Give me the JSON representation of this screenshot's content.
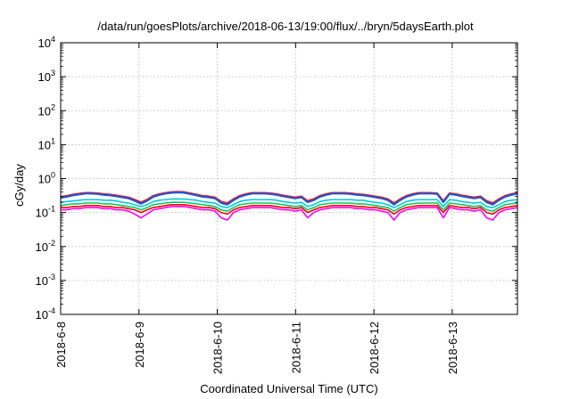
{
  "chart_data": {
    "type": "line",
    "title": "/data/run/goesPlots/archive/2018-06-13/19:00/flux/../bryn/5daysEarth.plot",
    "xlabel": "Coordinated Universal Time (UTC)",
    "ylabel": "cGy/day",
    "yscale": "log",
    "ylim": [
      0.0001,
      10000
    ],
    "y_ticks": [
      {
        "value": 0.0001,
        "base": "10",
        "exp": "-4"
      },
      {
        "value": 0.001,
        "base": "10",
        "exp": "-3"
      },
      {
        "value": 0.01,
        "base": "10",
        "exp": "-2"
      },
      {
        "value": 0.1,
        "base": "10",
        "exp": "-1"
      },
      {
        "value": 1,
        "base": "10",
        "exp": "0"
      },
      {
        "value": 10,
        "base": "10",
        "exp": "1"
      },
      {
        "value": 100,
        "base": "10",
        "exp": "2"
      },
      {
        "value": 1000,
        "base": "10",
        "exp": "3"
      },
      {
        "value": 10000,
        "base": "10",
        "exp": "4"
      }
    ],
    "xlim": [
      "2018-06-08 00:00",
      "2018-06-13 20:00"
    ],
    "x_ticks": [
      "2018-6-8",
      "2018-6-9",
      "2018-6-10",
      "2018-6-11",
      "2018-6-12",
      "2018-6-13"
    ],
    "x_tick_values": [
      "2018-06-08 00:00",
      "2018-06-09 00:00",
      "2018-06-10 00:00",
      "2018-06-11 00:00",
      "2018-06-12 00:00",
      "2018-06-13 00:00"
    ],
    "grid": true,
    "legend": "none",
    "series": [
      {
        "color": "#ff00ff",
        "values": [
          0.12,
          0.12,
          0.13,
          0.13,
          0.14,
          0.14,
          0.14,
          0.13,
          0.13,
          0.12,
          0.12,
          0.11,
          0.09,
          0.07,
          0.09,
          0.12,
          0.13,
          0.14,
          0.15,
          0.15,
          0.15,
          0.14,
          0.13,
          0.12,
          0.12,
          0.11,
          0.07,
          0.06,
          0.1,
          0.12,
          0.13,
          0.14,
          0.14,
          0.14,
          0.14,
          0.13,
          0.12,
          0.12,
          0.11,
          0.12,
          0.07,
          0.1,
          0.12,
          0.13,
          0.14,
          0.14,
          0.14,
          0.14,
          0.13,
          0.13,
          0.12,
          0.12,
          0.11,
          0.1,
          0.06,
          0.1,
          0.12,
          0.13,
          0.14,
          0.14,
          0.14,
          0.14,
          0.07,
          0.14,
          0.13,
          0.12,
          0.12,
          0.11,
          0.12,
          0.07,
          0.06,
          0.1,
          0.12,
          0.13,
          0.14
        ]
      },
      {
        "color": "#ff0000",
        "values": [
          0.14,
          0.14,
          0.15,
          0.15,
          0.16,
          0.16,
          0.16,
          0.15,
          0.15,
          0.14,
          0.14,
          0.13,
          0.12,
          0.1,
          0.12,
          0.14,
          0.15,
          0.16,
          0.17,
          0.17,
          0.17,
          0.16,
          0.15,
          0.14,
          0.14,
          0.13,
          0.1,
          0.09,
          0.12,
          0.14,
          0.15,
          0.16,
          0.16,
          0.16,
          0.16,
          0.15,
          0.14,
          0.14,
          0.13,
          0.14,
          0.1,
          0.12,
          0.14,
          0.15,
          0.16,
          0.16,
          0.16,
          0.16,
          0.15,
          0.15,
          0.14,
          0.14,
          0.13,
          0.12,
          0.09,
          0.12,
          0.14,
          0.15,
          0.16,
          0.16,
          0.16,
          0.16,
          0.1,
          0.16,
          0.15,
          0.14,
          0.14,
          0.13,
          0.14,
          0.1,
          0.09,
          0.12,
          0.14,
          0.15,
          0.16
        ]
      },
      {
        "color": "#00cc66",
        "values": [
          0.16,
          0.17,
          0.18,
          0.18,
          0.19,
          0.19,
          0.19,
          0.18,
          0.18,
          0.17,
          0.16,
          0.15,
          0.14,
          0.12,
          0.14,
          0.17,
          0.18,
          0.19,
          0.2,
          0.2,
          0.2,
          0.19,
          0.18,
          0.17,
          0.16,
          0.15,
          0.12,
          0.11,
          0.14,
          0.17,
          0.18,
          0.19,
          0.19,
          0.19,
          0.19,
          0.18,
          0.17,
          0.16,
          0.15,
          0.16,
          0.12,
          0.14,
          0.17,
          0.18,
          0.19,
          0.19,
          0.19,
          0.19,
          0.18,
          0.18,
          0.17,
          0.16,
          0.15,
          0.14,
          0.11,
          0.14,
          0.17,
          0.18,
          0.19,
          0.19,
          0.19,
          0.19,
          0.12,
          0.19,
          0.18,
          0.17,
          0.16,
          0.15,
          0.16,
          0.12,
          0.11,
          0.14,
          0.17,
          0.18,
          0.19
        ]
      },
      {
        "color": "#00c8d8",
        "values": [
          0.2,
          0.21,
          0.22,
          0.23,
          0.24,
          0.24,
          0.24,
          0.23,
          0.23,
          0.22,
          0.2,
          0.19,
          0.17,
          0.15,
          0.17,
          0.21,
          0.23,
          0.24,
          0.25,
          0.25,
          0.25,
          0.24,
          0.23,
          0.21,
          0.2,
          0.19,
          0.15,
          0.14,
          0.17,
          0.21,
          0.23,
          0.24,
          0.24,
          0.24,
          0.24,
          0.23,
          0.21,
          0.2,
          0.19,
          0.2,
          0.15,
          0.17,
          0.21,
          0.23,
          0.24,
          0.24,
          0.24,
          0.24,
          0.23,
          0.23,
          0.21,
          0.2,
          0.19,
          0.17,
          0.14,
          0.17,
          0.21,
          0.23,
          0.24,
          0.24,
          0.24,
          0.24,
          0.15,
          0.24,
          0.23,
          0.21,
          0.2,
          0.19,
          0.2,
          0.15,
          0.14,
          0.17,
          0.21,
          0.23,
          0.24
        ]
      },
      {
        "color": "#dd2020",
        "values": [
          0.29,
          0.31,
          0.34,
          0.36,
          0.38,
          0.38,
          0.37,
          0.35,
          0.34,
          0.32,
          0.3,
          0.28,
          0.24,
          0.2,
          0.24,
          0.31,
          0.35,
          0.38,
          0.4,
          0.41,
          0.4,
          0.37,
          0.34,
          0.31,
          0.3,
          0.28,
          0.21,
          0.19,
          0.25,
          0.31,
          0.35,
          0.38,
          0.38,
          0.38,
          0.37,
          0.35,
          0.32,
          0.3,
          0.28,
          0.3,
          0.22,
          0.25,
          0.31,
          0.35,
          0.38,
          0.38,
          0.38,
          0.37,
          0.35,
          0.34,
          0.32,
          0.3,
          0.28,
          0.25,
          0.19,
          0.25,
          0.31,
          0.35,
          0.38,
          0.38,
          0.38,
          0.37,
          0.22,
          0.37,
          0.35,
          0.32,
          0.3,
          0.28,
          0.3,
          0.22,
          0.19,
          0.25,
          0.31,
          0.35,
          0.38
        ]
      },
      {
        "color": "#1a55e0",
        "values": [
          0.27,
          0.29,
          0.32,
          0.34,
          0.36,
          0.36,
          0.35,
          0.33,
          0.32,
          0.3,
          0.28,
          0.26,
          0.22,
          0.18,
          0.22,
          0.29,
          0.33,
          0.36,
          0.38,
          0.39,
          0.38,
          0.35,
          0.32,
          0.29,
          0.28,
          0.26,
          0.19,
          0.17,
          0.23,
          0.29,
          0.33,
          0.36,
          0.36,
          0.36,
          0.35,
          0.33,
          0.3,
          0.28,
          0.26,
          0.28,
          0.2,
          0.23,
          0.29,
          0.33,
          0.36,
          0.36,
          0.36,
          0.35,
          0.33,
          0.32,
          0.3,
          0.28,
          0.26,
          0.23,
          0.17,
          0.23,
          0.29,
          0.33,
          0.36,
          0.36,
          0.36,
          0.35,
          0.2,
          0.35,
          0.33,
          0.3,
          0.28,
          0.26,
          0.28,
          0.2,
          0.17,
          0.23,
          0.29,
          0.33,
          0.36
        ]
      }
    ]
  }
}
